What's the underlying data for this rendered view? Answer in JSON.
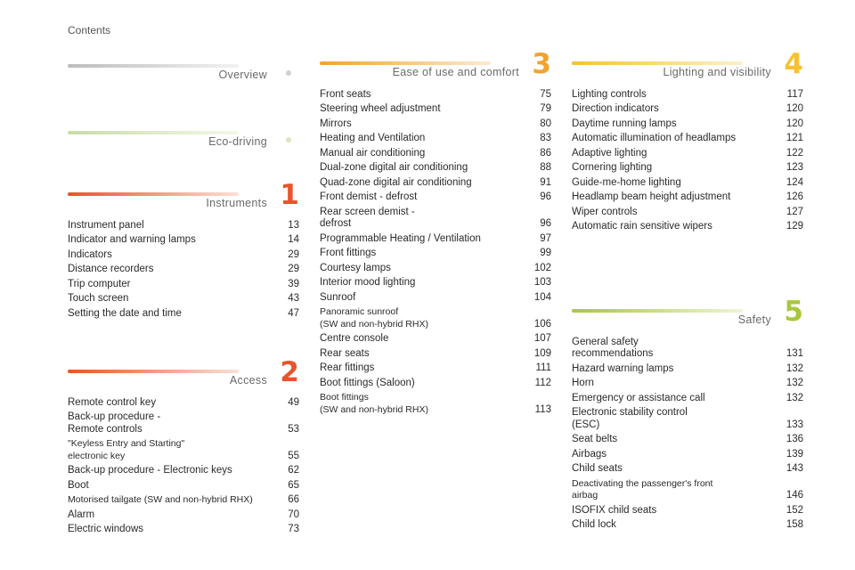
{
  "header": {
    "label": "Contents"
  },
  "sections": {
    "overview": {
      "title": "Overview",
      "bar_color": "#c9c9c9",
      "entries": []
    },
    "eco": {
      "title": "Eco-driving",
      "bar_color": "#cfe0b0",
      "entries": []
    },
    "instruments": {
      "title": "Instruments",
      "number": "1",
      "color": "#e8542b",
      "entries": [
        {
          "title": "Instrument panel",
          "page": "13"
        },
        {
          "title": "Indicator and warning lamps",
          "page": "14"
        },
        {
          "title": "Indicators",
          "page": "29"
        },
        {
          "title": "Distance recorders",
          "page": "29"
        },
        {
          "title": "Trip computer",
          "page": "39"
        },
        {
          "title": "Touch screen",
          "page": "43"
        },
        {
          "title": "Setting the date and time",
          "page": "47"
        }
      ]
    },
    "access": {
      "title": "Access",
      "number": "2",
      "color": "#e8542b",
      "entries": [
        {
          "title": "Remote control key",
          "page": "49"
        },
        {
          "title": "Back-up procedure -\n   Remote controls",
          "page": "53"
        },
        {
          "title": "\"Keyless Entry and Starting\"\n   electronic key",
          "page": "55"
        },
        {
          "title": "Back-up procedure - Electronic keys",
          "page": "62"
        },
        {
          "title": "Boot",
          "page": "65"
        },
        {
          "title": "Motorised tailgate (SW and non-hybrid RHX)",
          "page": "66"
        },
        {
          "title": "Alarm",
          "page": "70"
        },
        {
          "title": "Electric windows",
          "page": "73"
        }
      ]
    },
    "ease": {
      "title": "Ease of use and comfort",
      "number": "3",
      "color": "#f2a22e",
      "entries": [
        {
          "title": "Front seats",
          "page": "75"
        },
        {
          "title": "Steering wheel adjustment",
          "page": "79"
        },
        {
          "title": "Mirrors",
          "page": "80"
        },
        {
          "title": "Heating and Ventilation",
          "page": "83"
        },
        {
          "title": "Manual air conditioning",
          "page": "86"
        },
        {
          "title": "Dual-zone digital air conditioning",
          "page": "88"
        },
        {
          "title": "Quad-zone digital air conditioning",
          "page": "91"
        },
        {
          "title": "Front demist - defrost",
          "page": "96"
        },
        {
          "title": "Rear screen demist -\n   defrost",
          "page": "96"
        },
        {
          "title": "Programmable Heating / Ventilation",
          "page": "97"
        },
        {
          "title": "Front fittings",
          "page": "99"
        },
        {
          "title": "Courtesy lamps",
          "page": "102"
        },
        {
          "title": "Interior mood lighting",
          "page": "103"
        },
        {
          "title": "Sunroof",
          "page": "104"
        },
        {
          "title": "Panoramic sunroof\n   (SW and non-hybrid RHX)",
          "page": "106"
        },
        {
          "title": "Centre console",
          "page": "107"
        },
        {
          "title": "Rear seats",
          "page": "109"
        },
        {
          "title": "Rear fittings",
          "page": "111"
        },
        {
          "title": "Boot fittings (Saloon)",
          "page": "112"
        },
        {
          "title": "Boot fittings\n   (SW and non-hybrid RHX)",
          "page": "113"
        }
      ]
    },
    "lighting": {
      "title": "Lighting and visibility",
      "number": "4",
      "color": "#f6c230",
      "entries": [
        {
          "title": "Lighting controls",
          "page": "117"
        },
        {
          "title": "Direction indicators",
          "page": "120"
        },
        {
          "title": "Daytime running lamps",
          "page": "120"
        },
        {
          "title": "Automatic illumination of headlamps",
          "page": "121"
        },
        {
          "title": "Adaptive lighting",
          "page": "122"
        },
        {
          "title": "Cornering lighting",
          "page": "123"
        },
        {
          "title": "Guide-me-home lighting",
          "page": "124"
        },
        {
          "title": "Headlamp beam height adjustment",
          "page": "126"
        },
        {
          "title": "Wiper controls",
          "page": "127"
        },
        {
          "title": "Automatic rain sensitive wipers",
          "page": "129"
        }
      ]
    },
    "safety": {
      "title": "Safety",
      "number": "5",
      "color": "#a8c83c",
      "entries": [
        {
          "title": "General safety\n   recommendations",
          "page": "131"
        },
        {
          "title": "Hazard warning lamps",
          "page": "132"
        },
        {
          "title": "Horn",
          "page": "132"
        },
        {
          "title": "Emergency or assistance call",
          "page": "132"
        },
        {
          "title": "Electronic stability control\n   (ESC)",
          "page": "133"
        },
        {
          "title": "Seat belts",
          "page": "136"
        },
        {
          "title": "Airbags",
          "page": "139"
        },
        {
          "title": "Child seats",
          "page": "143"
        },
        {
          "title": "Deactivating the passenger's front\n   airbag",
          "page": "146"
        },
        {
          "title": "ISOFIX child seats",
          "page": "152"
        },
        {
          "title": "Child lock",
          "page": "158"
        }
      ]
    }
  }
}
